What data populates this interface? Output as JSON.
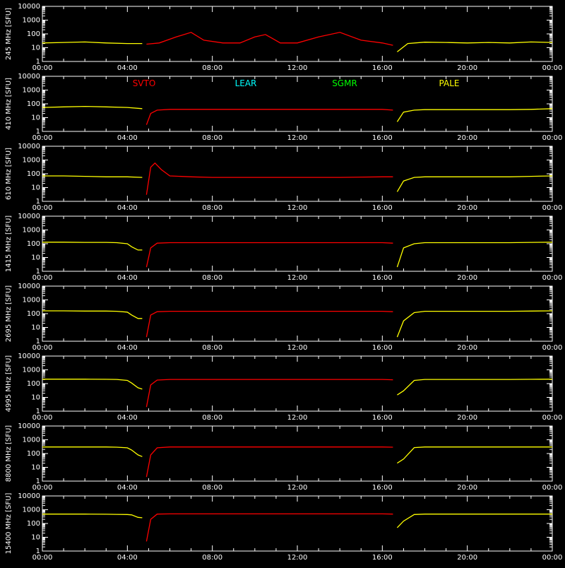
{
  "colors": {
    "background": "#000000",
    "axes": "#ffffff",
    "SVTO": "#ff0000",
    "LEAR": "#00ffff",
    "SGMR": "#00ff00",
    "PALE": "#ffff00"
  },
  "stations": [
    "SVTO",
    "LEAR",
    "SGMR",
    "PALE"
  ],
  "x_ticks": [
    "00:00",
    "04:00",
    "08:00",
    "12:00",
    "16:00",
    "20:00",
    "00:00"
  ],
  "y_ticks": [
    "1",
    "10",
    "100",
    "1000",
    "10000"
  ],
  "chart_data": {
    "type": "line",
    "xlim": [
      0,
      24
    ],
    "ylim": [
      1,
      10000
    ],
    "y_scale": "log",
    "x_tick_values": [
      0,
      4,
      8,
      12,
      16,
      20,
      24
    ],
    "y_tick_values": [
      1,
      10,
      100,
      1000,
      10000
    ],
    "station_segments": [
      {
        "station": "PALE",
        "start": 0,
        "end": 4.8
      },
      {
        "station": "SVTO",
        "start": 4.8,
        "end": 16.6
      },
      {
        "station": "PALE",
        "start": 16.6,
        "end": 24
      }
    ],
    "panels": [
      {
        "ylabel": "245 MHz [SFU]",
        "series": [
          {
            "station": "PALE",
            "x": [
              0,
              1,
              2,
              3,
              4,
              4.7
            ],
            "y": [
              22,
              24,
              26,
              22,
              20,
              20
            ]
          },
          {
            "station": "SVTO",
            "x": [
              4.9,
              5.5,
              6.3,
              7,
              7.6,
              8.5,
              9.3,
              10,
              10.5,
              11.2,
              12,
              13,
              14,
              15,
              16,
              16.5
            ],
            "y": [
              18,
              22,
              60,
              130,
              35,
              22,
              22,
              60,
              90,
              22,
              22,
              60,
              130,
              35,
              22,
              15
            ]
          },
          {
            "station": "PALE",
            "x": [
              16.7,
              17.2,
              18,
              19,
              20,
              21,
              22,
              23,
              24
            ],
            "y": [
              5,
              20,
              25,
              24,
              22,
              24,
              22,
              26,
              24
            ]
          }
        ]
      },
      {
        "ylabel": "410 MHz [SFU]",
        "series": [
          {
            "station": "PALE",
            "x": [
              0,
              1,
              2,
              3,
              4,
              4.7
            ],
            "y": [
              55,
              60,
              65,
              60,
              55,
              45
            ]
          },
          {
            "station": "SVTO",
            "x": [
              4.9,
              5.1,
              5.4,
              6,
              8,
              10,
              12,
              14,
              16,
              16.5
            ],
            "y": [
              3,
              20,
              35,
              40,
              40,
              40,
              40,
              40,
              40,
              35
            ]
          },
          {
            "station": "PALE",
            "x": [
              16.7,
              17,
              17.5,
              18,
              20,
              22,
              23,
              24
            ],
            "y": [
              5,
              25,
              35,
              38,
              38,
              38,
              40,
              45
            ]
          }
        ]
      },
      {
        "ylabel": "610 MHz [SFU]",
        "series": [
          {
            "station": "PALE",
            "x": [
              0,
              1,
              2,
              3,
              4,
              4.7
            ],
            "y": [
              70,
              70,
              65,
              60,
              60,
              55
            ]
          },
          {
            "station": "SVTO",
            "x": [
              4.9,
              5.1,
              5.3,
              5.6,
              6,
              7,
              8,
              10,
              12,
              14,
              16,
              16.5
            ],
            "y": [
              3,
              300,
              600,
              200,
              70,
              60,
              55,
              55,
              55,
              55,
              60,
              60
            ]
          },
          {
            "station": "PALE",
            "x": [
              16.7,
              17,
              17.5,
              18,
              20,
              22,
              23,
              24
            ],
            "y": [
              5,
              30,
              55,
              60,
              60,
              60,
              65,
              70
            ]
          }
        ]
      },
      {
        "ylabel": "1415 MHz [SFU]",
        "series": [
          {
            "station": "PALE",
            "x": [
              0,
              1,
              2,
              3,
              3.5,
              4,
              4.2,
              4.5,
              4.7
            ],
            "y": [
              130,
              130,
              125,
              125,
              120,
              100,
              60,
              35,
              35
            ]
          },
          {
            "station": "SVTO",
            "x": [
              4.9,
              5.1,
              5.4,
              6,
              8,
              10,
              12,
              14,
              16,
              16.5
            ],
            "y": [
              2,
              50,
              110,
              120,
              120,
              120,
              120,
              120,
              120,
              110
            ]
          },
          {
            "station": "PALE",
            "x": [
              16.7,
              17,
              17.5,
              18,
              20,
              22,
              23,
              24
            ],
            "y": [
              2,
              50,
              100,
              120,
              120,
              120,
              125,
              130
            ]
          }
        ]
      },
      {
        "ylabel": "2695 MHz [SFU]",
        "series": [
          {
            "station": "PALE",
            "x": [
              0,
              1,
              2,
              3,
              3.5,
              4,
              4.2,
              4.5,
              4.7
            ],
            "y": [
              160,
              160,
              155,
              155,
              150,
              130,
              80,
              45,
              45
            ]
          },
          {
            "station": "SVTO",
            "x": [
              4.9,
              5.1,
              5.4,
              6,
              8,
              10,
              12,
              14,
              16,
              16.5
            ],
            "y": [
              2,
              80,
              140,
              150,
              150,
              150,
              150,
              150,
              150,
              140
            ]
          },
          {
            "station": "PALE",
            "x": [
              16.7,
              17,
              17.5,
              18,
              20,
              22,
              23,
              24
            ],
            "y": [
              2,
              30,
              120,
              150,
              150,
              150,
              155,
              160
            ]
          }
        ]
      },
      {
        "ylabel": "4995 MHz [SFU]",
        "series": [
          {
            "station": "PALE",
            "x": [
              0,
              1,
              2,
              3,
              3.5,
              4,
              4.2,
              4.5,
              4.7
            ],
            "y": [
              210,
              210,
              210,
              205,
              200,
              170,
              110,
              50,
              40
            ]
          },
          {
            "station": "SVTO",
            "x": [
              4.9,
              5.1,
              5.4,
              6,
              8,
              10,
              12,
              14,
              16,
              16.5
            ],
            "y": [
              2,
              80,
              180,
              200,
              200,
              200,
              200,
              200,
              200,
              190
            ]
          },
          {
            "station": "PALE",
            "x": [
              16.7,
              17,
              17.5,
              18,
              20,
              22,
              23,
              24
            ],
            "y": [
              15,
              30,
              170,
              200,
              200,
              200,
              205,
              210
            ]
          }
        ]
      },
      {
        "ylabel": "8800 MHz [SFU]",
        "series": [
          {
            "station": "PALE",
            "x": [
              0,
              1,
              2,
              3,
              3.5,
              4,
              4.2,
              4.5,
              4.7
            ],
            "y": [
              300,
              300,
              300,
              300,
              290,
              260,
              180,
              80,
              60
            ]
          },
          {
            "station": "SVTO",
            "x": [
              4.9,
              5.1,
              5.4,
              6,
              8,
              10,
              12,
              14,
              16,
              16.5
            ],
            "y": [
              2,
              80,
              260,
              300,
              300,
              300,
              300,
              300,
              300,
              290
            ]
          },
          {
            "station": "PALE",
            "x": [
              16.7,
              17,
              17.5,
              18,
              20,
              22,
              23,
              24
            ],
            "y": [
              20,
              40,
              270,
              300,
              300,
              300,
              300,
              300
            ]
          }
        ]
      },
      {
        "ylabel": "15400 MHz [SFU]",
        "series": [
          {
            "station": "PALE",
            "x": [
              0,
              1,
              2,
              3,
              3.5,
              4,
              4.2,
              4.5,
              4.7
            ],
            "y": [
              480,
              480,
              480,
              470,
              460,
              450,
              420,
              280,
              260
            ]
          },
          {
            "station": "SVTO",
            "x": [
              4.9,
              5.1,
              5.4,
              6,
              8,
              10,
              12,
              14,
              16,
              16.5
            ],
            "y": [
              5,
              200,
              480,
              500,
              500,
              500,
              500,
              500,
              500,
              480
            ]
          },
          {
            "station": "PALE",
            "x": [
              16.7,
              17,
              17.5,
              18,
              20,
              22,
              23,
              24
            ],
            "y": [
              50,
              150,
              450,
              480,
              480,
              480,
              480,
              480
            ]
          }
        ]
      }
    ]
  }
}
